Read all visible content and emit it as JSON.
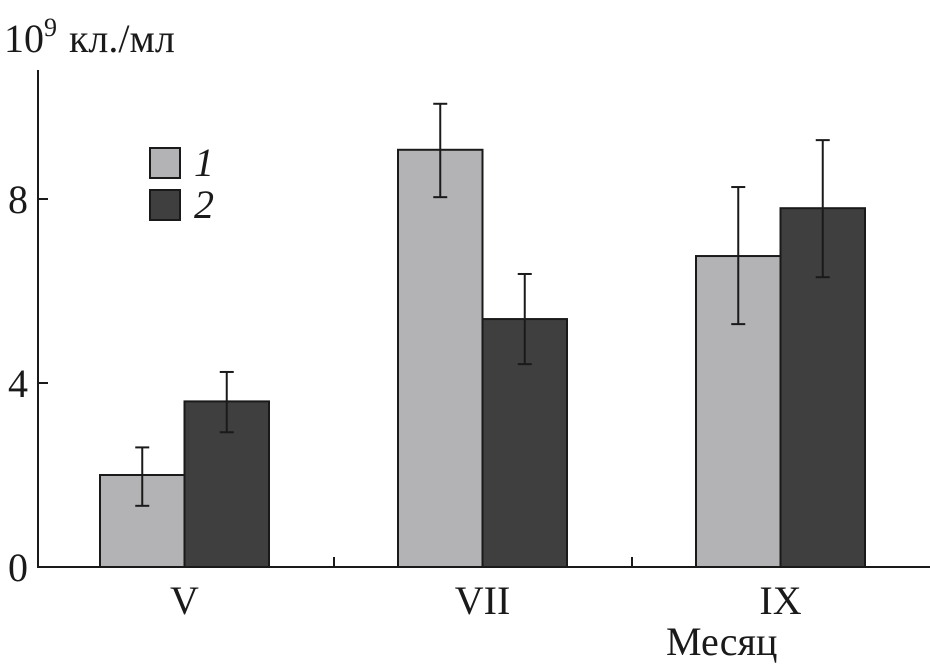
{
  "chart_data": {
    "type": "bar",
    "title": "",
    "ylabel": "10⁹ кл./мл",
    "ylabel_base": "10",
    "ylabel_exp": "9",
    "ylabel_unit": "кл./мл",
    "xlabel": "Месяц",
    "categories": [
      "V",
      "VII",
      "IX"
    ],
    "ylim": [
      0,
      10.8
    ],
    "yticks": [
      0,
      4,
      8
    ],
    "ytick_labels": [
      "0",
      "4",
      "8"
    ],
    "grid": false,
    "legend_placement": "top-left",
    "series": [
      {
        "name": "1",
        "color": "#b3b3b6",
        "values": [
          2.0,
          9.07,
          6.76
        ],
        "error_low": [
          1.33,
          8.04,
          5.28
        ],
        "error_high": [
          2.6,
          10.07,
          8.26
        ]
      },
      {
        "name": "2",
        "color": "#3f3f3f",
        "values": [
          3.6,
          5.39,
          7.8
        ],
        "error_low": [
          2.93,
          4.41,
          6.3
        ],
        "error_high": [
          4.24,
          6.37,
          9.28
        ]
      }
    ]
  }
}
